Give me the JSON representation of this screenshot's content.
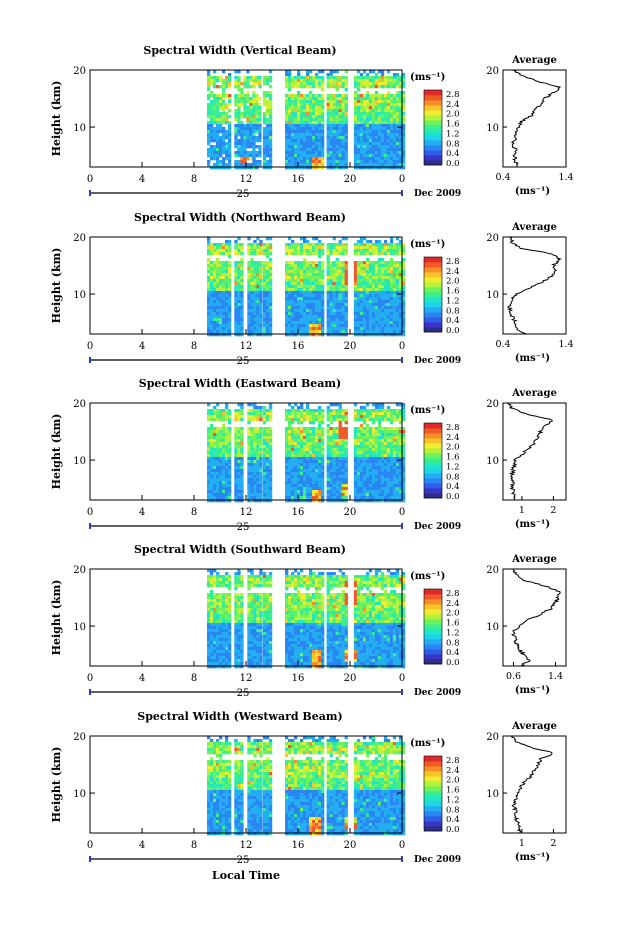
{
  "figure": {
    "date_label": "Dec 2009",
    "day_label": "25",
    "local_time_label": "Local Time",
    "unit_label": "(ms⁻¹)"
  },
  "colorbar": {
    "ticks": [
      "0.0",
      "0.4",
      "0.8",
      "1.2",
      "1.6",
      "2.0",
      "2.4",
      "2.8"
    ],
    "colors": [
      "#2b2f86",
      "#3a34c8",
      "#2f5fe8",
      "#2a86f2",
      "#22aef0",
      "#1ed3ea",
      "#1fe7c6",
      "#37ee93",
      "#6ef15a",
      "#b5f23d",
      "#f0ec2f",
      "#f8c22a",
      "#f78f26",
      "#f1592a",
      "#e02a2a"
    ]
  },
  "chart_data": [
    {
      "type": "heatmap",
      "title": "Spectral Width (Vertical Beam)",
      "xlabel": "",
      "ylabel": "Height (km)",
      "x_ticks": [
        "0",
        "4",
        "8",
        "12",
        "16",
        "20",
        "0"
      ],
      "x_range_hours": [
        0,
        24
      ],
      "y_ticks": [
        "10",
        "20"
      ],
      "ylim_km": [
        3,
        20
      ],
      "colorbar_range_ms": [
        0.0,
        3.0
      ],
      "data_coverage_hours": [
        [
          9,
          10.8
        ],
        [
          11.1,
          13.1
        ],
        [
          13.3,
          13.8
        ],
        [
          15.0,
          17.8
        ],
        [
          18.2,
          19.8
        ],
        [
          20.3,
          24
        ]
      ],
      "notable_high_width_regions": [
        {
          "time_h": 17.5,
          "height_km": "3-5"
        },
        {
          "time_h": 12,
          "height_km": "4-5"
        }
      ],
      "average_profile": {
        "title": "Average",
        "xlabel": "(ms⁻¹)",
        "x_ticks": [
          "0.4",
          "1.4"
        ],
        "xlim": [
          0.4,
          1.4
        ],
        "y_ticks": [
          "10",
          "20"
        ],
        "heights_km": [
          3,
          4,
          5,
          6,
          7,
          8,
          9,
          10,
          11,
          12,
          13,
          14,
          15,
          16,
          17,
          18,
          19,
          20
        ],
        "values_ms": [
          0.62,
          0.6,
          0.58,
          0.6,
          0.55,
          0.6,
          0.62,
          0.65,
          0.7,
          0.85,
          0.9,
          1.0,
          1.05,
          1.2,
          1.3,
          0.95,
          0.7,
          0.55
        ]
      }
    },
    {
      "type": "heatmap",
      "title": "Spectral Width (Northward Beam)",
      "xlabel": "",
      "ylabel": "Height (km)",
      "x_ticks": [
        "0",
        "4",
        "8",
        "12",
        "16",
        "20",
        "0"
      ],
      "x_range_hours": [
        0,
        24
      ],
      "y_ticks": [
        "10",
        "20"
      ],
      "ylim_km": [
        3,
        20
      ],
      "colorbar_range_ms": [
        0.0,
        3.0
      ],
      "data_coverage_hours": [
        [
          9,
          10.8
        ],
        [
          11.1,
          11.7
        ],
        [
          12.1,
          13.1
        ],
        [
          13.3,
          13.8
        ],
        [
          15.0,
          17.8
        ],
        [
          18.2,
          19.8
        ],
        [
          20.3,
          24
        ]
      ],
      "notable_high_width_regions": [
        {
          "time_h": 17.2,
          "height_km": "3-5"
        },
        {
          "time_h": 20,
          "height_km": "12-16"
        }
      ],
      "average_profile": {
        "title": "Average",
        "xlabel": "(ms⁻¹)",
        "x_ticks": [
          "0.4",
          "1.4"
        ],
        "xlim": [
          0.4,
          1.4
        ],
        "y_ticks": [
          "10",
          "20"
        ],
        "heights_km": [
          3,
          4,
          5,
          6,
          7,
          8,
          9,
          10,
          11,
          12,
          13,
          14,
          15,
          16,
          17,
          18,
          19,
          20
        ],
        "values_ms": [
          0.75,
          0.62,
          0.6,
          0.55,
          0.52,
          0.5,
          0.55,
          0.6,
          0.8,
          1.0,
          1.15,
          1.25,
          1.2,
          1.3,
          1.2,
          0.7,
          0.55,
          0.5
        ]
      }
    },
    {
      "type": "heatmap",
      "title": "Spectral Width (Eastward Beam)",
      "xlabel": "",
      "ylabel": "Height (km)",
      "x_ticks": [
        "0",
        "4",
        "8",
        "12",
        "16",
        "20",
        "0"
      ],
      "x_range_hours": [
        0,
        24
      ],
      "y_ticks": [
        "10",
        "20"
      ],
      "ylim_km": [
        3,
        20
      ],
      "colorbar_range_ms": [
        0.0,
        3.0
      ],
      "data_coverage_hours": [
        [
          9,
          10.8
        ],
        [
          11.1,
          11.7
        ],
        [
          12.1,
          13.1
        ],
        [
          13.3,
          13.8
        ],
        [
          15.0,
          17.8
        ],
        [
          18.2,
          19.8
        ],
        [
          20.3,
          24
        ]
      ],
      "notable_high_width_regions": [
        {
          "time_h": 17.3,
          "height_km": "3-5"
        },
        {
          "time_h": 19.7,
          "height_km": "4-6"
        },
        {
          "time_h": 19.5,
          "height_km": "14-17"
        }
      ],
      "average_profile": {
        "title": "Average",
        "xlabel": "(ms⁻¹)",
        "x_ticks": [
          "1",
          "2"
        ],
        "xlim": [
          0.4,
          2.4
        ],
        "y_ticks": [
          "10",
          "20"
        ],
        "heights_km": [
          3,
          4,
          5,
          6,
          7,
          8,
          9,
          10,
          11,
          12,
          13,
          14,
          15,
          16,
          17,
          18,
          19,
          20
        ],
        "values_ms": [
          0.8,
          0.75,
          0.7,
          0.72,
          0.68,
          0.7,
          0.75,
          0.8,
          1.0,
          1.2,
          1.4,
          1.5,
          1.6,
          1.7,
          2.0,
          1.2,
          0.7,
          0.6
        ]
      }
    },
    {
      "type": "heatmap",
      "title": "Spectral Width (Southward Beam)",
      "xlabel": "",
      "ylabel": "Height (km)",
      "x_ticks": [
        "0",
        "4",
        "8",
        "12",
        "16",
        "20",
        "0"
      ],
      "x_range_hours": [
        0,
        24
      ],
      "y_ticks": [
        "10",
        "20"
      ],
      "ylim_km": [
        3,
        20
      ],
      "colorbar_range_ms": [
        0.0,
        3.0
      ],
      "data_coverage_hours": [
        [
          9,
          10.8
        ],
        [
          11.1,
          11.7
        ],
        [
          12.1,
          13.1
        ],
        [
          13.3,
          13.8
        ],
        [
          15.0,
          17.8
        ],
        [
          18.2,
          19.8
        ],
        [
          20.3,
          24
        ]
      ],
      "notable_high_width_regions": [
        {
          "time_h": 17.3,
          "height_km": "3-6"
        },
        {
          "time_h": 20,
          "height_km": "4-6"
        },
        {
          "time_h": 20,
          "height_km": "14-18"
        }
      ],
      "average_profile": {
        "title": "Average",
        "xlabel": "(ms⁻¹)",
        "x_ticks": [
          "0.6",
          "1.4"
        ],
        "xlim": [
          0.4,
          1.6
        ],
        "y_ticks": [
          "10",
          "20"
        ],
        "heights_km": [
          3,
          4,
          5,
          6,
          7,
          8,
          9,
          10,
          11,
          12,
          13,
          14,
          15,
          16,
          17,
          18,
          19,
          20
        ],
        "values_ms": [
          0.75,
          0.9,
          0.8,
          0.7,
          0.65,
          0.62,
          0.6,
          0.7,
          0.85,
          1.1,
          1.3,
          1.4,
          1.45,
          1.5,
          1.2,
          0.8,
          0.65,
          0.6
        ]
      }
    },
    {
      "type": "heatmap",
      "title": "Spectral Width (Westward Beam)",
      "xlabel": "Local Time",
      "ylabel": "Height (km)",
      "x_ticks": [
        "0",
        "4",
        "8",
        "12",
        "16",
        "20",
        "0"
      ],
      "x_range_hours": [
        0,
        24
      ],
      "y_ticks": [
        "10",
        "20"
      ],
      "ylim_km": [
        3,
        20
      ],
      "colorbar_range_ms": [
        0.0,
        3.0
      ],
      "data_coverage_hours": [
        [
          9,
          10.8
        ],
        [
          11.1,
          11.7
        ],
        [
          12.1,
          13.1
        ],
        [
          13.3,
          13.8
        ],
        [
          15.0,
          17.8
        ],
        [
          18.2,
          19.8
        ],
        [
          20.3,
          24
        ]
      ],
      "notable_high_width_regions": [
        {
          "time_h": 17.2,
          "height_km": "3-6"
        },
        {
          "time_h": 20,
          "height_km": "4-6"
        }
      ],
      "average_profile": {
        "title": "Average",
        "xlabel": "(ms⁻¹)",
        "x_ticks": [
          "1",
          "2"
        ],
        "xlim": [
          0.4,
          2.4
        ],
        "y_ticks": [
          "10",
          "20"
        ],
        "heights_km": [
          3,
          4,
          5,
          6,
          7,
          8,
          9,
          10,
          11,
          12,
          13,
          14,
          15,
          16,
          17,
          18,
          19,
          20
        ],
        "values_ms": [
          0.95,
          0.9,
          0.85,
          0.8,
          0.78,
          0.75,
          0.8,
          0.85,
          0.95,
          1.1,
          1.3,
          1.4,
          1.5,
          1.6,
          2.0,
          1.3,
          0.8,
          0.7
        ]
      }
    }
  ]
}
